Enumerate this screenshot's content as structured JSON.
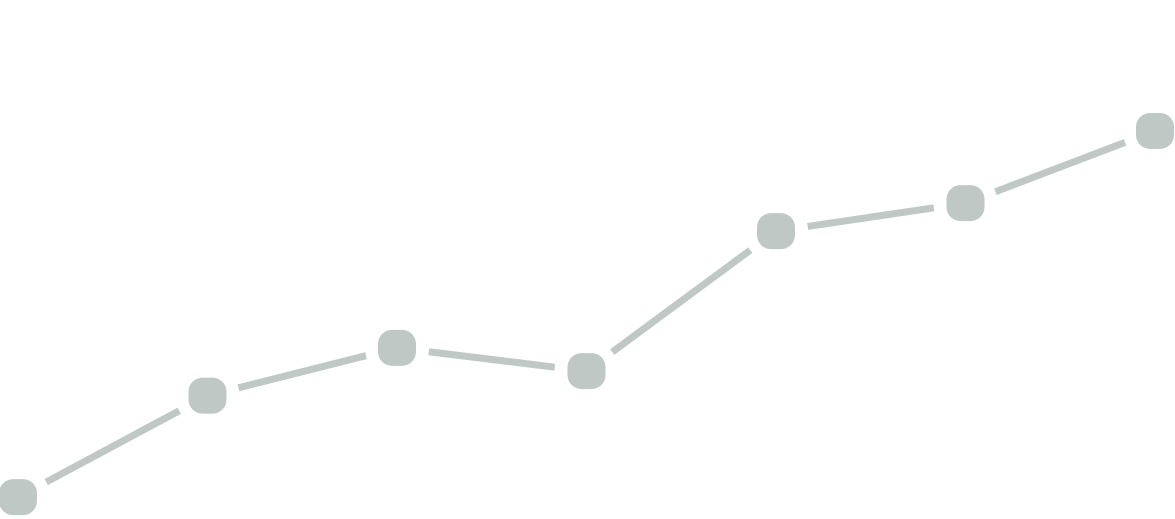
{
  "chart_data": {
    "type": "line",
    "title": "",
    "xlabel": "",
    "ylabel": "",
    "x": [
      1,
      2,
      3,
      4,
      5,
      6,
      7
    ],
    "series": [
      {
        "values": [
          0.7,
          38.7,
          56.6,
          47.9,
          100.3,
          110.8,
          137.8
        ]
      }
    ],
    "xlim": [
      1,
      7
    ],
    "ylim": [
      0,
      137.8
    ],
    "grid": false,
    "legend": "none",
    "colors": {
      "line": "#bfc8c4",
      "marker": "#bfc8c4",
      "background": "#ffffff"
    },
    "marker_shape": "rounded-square"
  }
}
